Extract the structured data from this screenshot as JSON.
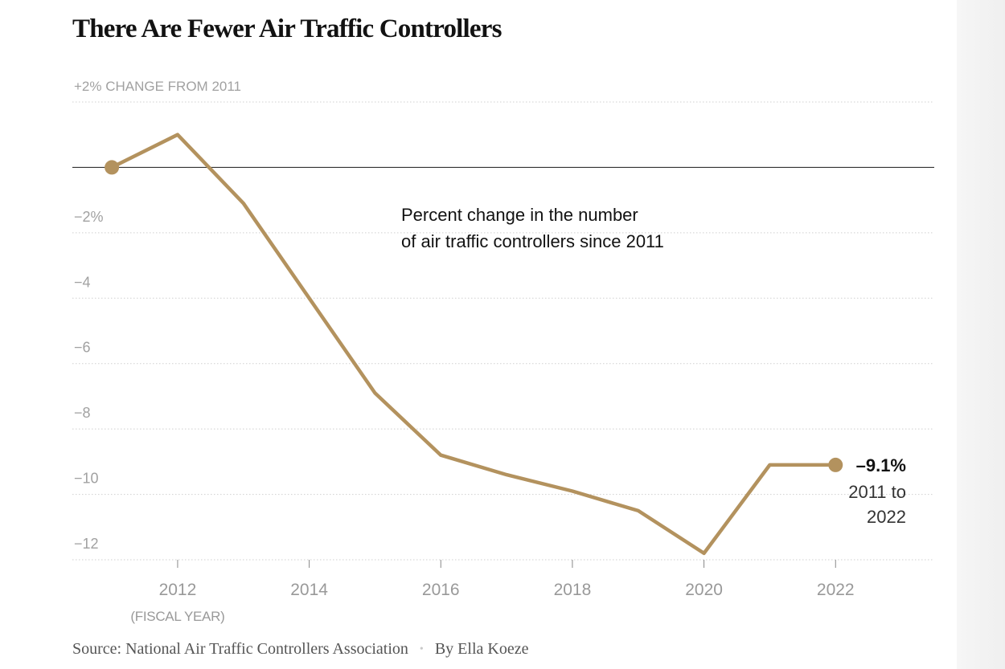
{
  "title": "There Are Fewer Air Traffic Controllers",
  "chart_data": {
    "type": "line",
    "title": "There Are Fewer Air Traffic Controllers",
    "ylabel": "+2% CHANGE FROM 2011",
    "xlabel": "(FISCAL YEAR)",
    "annotation": [
      "Percent change in the number",
      "of air traffic controllers since 2011"
    ],
    "x": [
      2011,
      2012,
      2013,
      2014,
      2015,
      2016,
      2017,
      2018,
      2019,
      2020,
      2021,
      2022
    ],
    "series": [
      {
        "name": "Percent change since 2011",
        "values": [
          0,
          1.0,
          -1.1,
          -4.0,
          -6.9,
          -8.8,
          -9.4,
          -9.9,
          -10.5,
          -11.8,
          -9.1,
          -9.1
        ],
        "color": "#b3925e"
      }
    ],
    "xlim": [
      2010.4,
      2023.5
    ],
    "ylim": [
      -12,
      2
    ],
    "xticks": [
      2012,
      2014,
      2016,
      2018,
      2020,
      2022
    ],
    "xtick_labels": [
      "2012",
      "2014",
      "2016",
      "2018",
      "2020",
      "2022"
    ],
    "yticks": [
      2,
      -2,
      -4,
      -6,
      -8,
      -10,
      -12
    ],
    "ytick_labels": [
      "+2% CHANGE FROM 2011",
      "−2%",
      "−4",
      "−6",
      "−8",
      "−10",
      "−12"
    ],
    "end_label": {
      "value": "–9.1%",
      "lines": [
        "2011 to",
        "2022"
      ]
    },
    "zero_line": true,
    "grid": "dotted horizontal"
  },
  "source": {
    "text": "Source: National Air Traffic Controllers Association",
    "byline": "By Ella Koeze",
    "separator": "•"
  }
}
